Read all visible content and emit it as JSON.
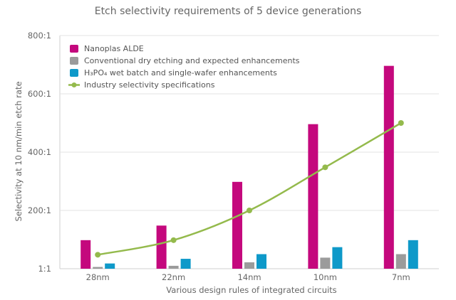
{
  "chart_data": {
    "type": "bar",
    "title": "Etch selectivity requirements of 5 device generations",
    "xlabel": "Various design rules of integrated circuits",
    "ylabel": "Selectivity at 10 nm/min etch rate",
    "categories": [
      "28nm",
      "22nm",
      "14nm",
      "10nm",
      "7nm"
    ],
    "y_ticks": [
      {
        "label": "1:1",
        "level": 0
      },
      {
        "label": "200:1",
        "level": 1
      },
      {
        "label": "400:1",
        "level": 2
      },
      {
        "label": "600:1",
        "level": 3
      },
      {
        "label": "800:1",
        "level": 4
      }
    ],
    "ylim_levels": [
      0,
      4
    ],
    "grid": true,
    "legend_position": "top-left",
    "series": [
      {
        "name": "Nanoplas ALDE",
        "kind": "bar",
        "color": "#c4087d",
        "values": [
          0.49,
          0.74,
          1.49,
          2.48,
          3.48
        ]
      },
      {
        "name": "Conventional dry etching and expected enhancements",
        "kind": "bar",
        "color": "#9b9b9b",
        "values": [
          0.03,
          0.05,
          0.11,
          0.19,
          0.25
        ]
      },
      {
        "name": "H₃PO₄ wet batch and single-wafer enhancements",
        "kind": "bar",
        "color": "#0e99c9",
        "values": [
          0.09,
          0.17,
          0.25,
          0.37,
          0.49
        ]
      },
      {
        "name": "Industry selectivity specifications",
        "kind": "line",
        "color": "#94ba4c",
        "values": [
          0.24,
          0.49,
          1.0,
          1.74,
          2.5
        ]
      }
    ]
  }
}
